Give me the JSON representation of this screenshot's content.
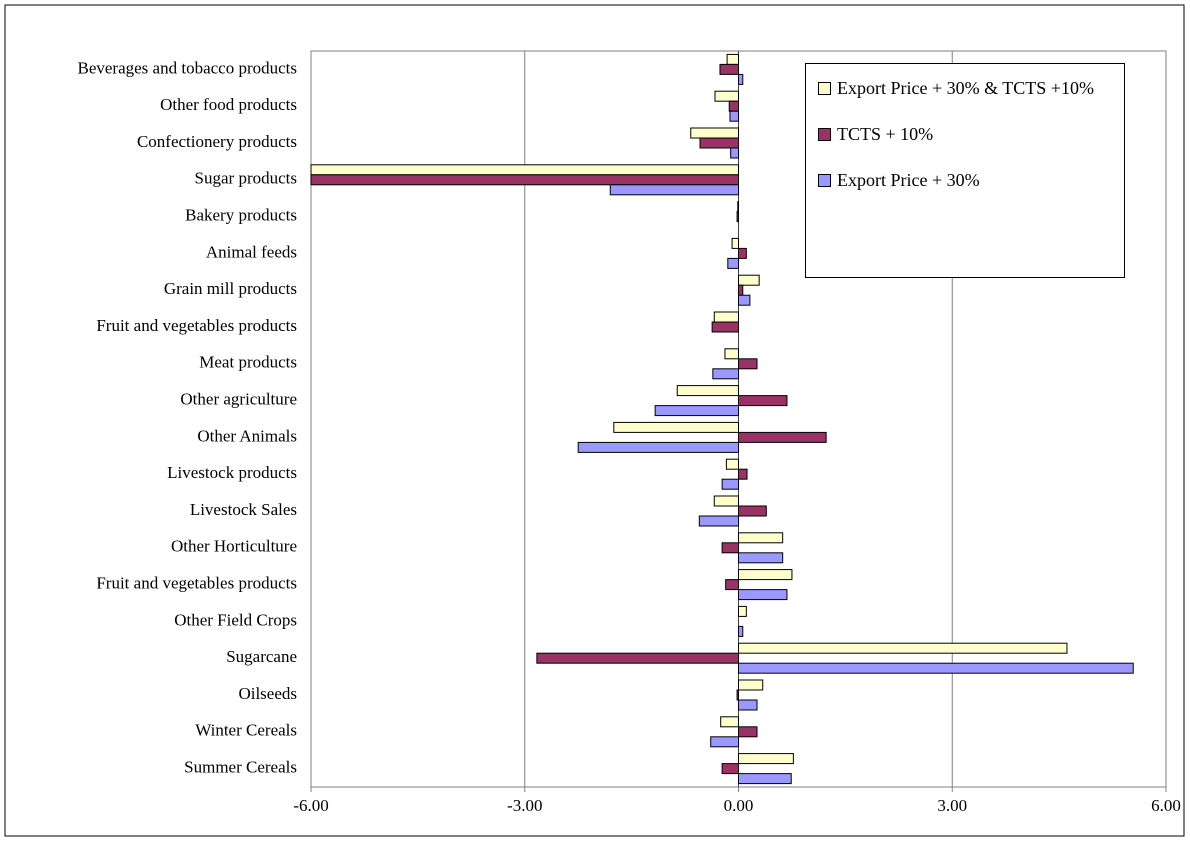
{
  "chart_data": {
    "type": "hbar",
    "categories": [
      "Beverages and tobacco products",
      "Other food products",
      "Confectionery products",
      "Sugar products",
      "Bakery products",
      "Animal feeds",
      "Grain mill products",
      "Fruit and vegetables products",
      "Meat products",
      "Other agriculture",
      "Other Animals",
      "Livestock products",
      "Livestock Sales",
      "Other Horticulture",
      "Fruit and vegetables products",
      "Other Field Crops",
      "Sugarcane",
      "Oilseeds",
      "Winter Cereals",
      "Summer Cereals"
    ],
    "series": [
      {
        "name": "Export Price + 30% & TCTS +10%",
        "color": "#ffffcc",
        "values": [
          -0.16,
          -0.33,
          -0.67,
          -6.0,
          -0.01,
          -0.09,
          0.29,
          -0.34,
          -0.19,
          -0.86,
          -1.75,
          -0.17,
          -0.34,
          0.62,
          0.75,
          0.11,
          4.61,
          0.34,
          -0.25,
          0.77
        ]
      },
      {
        "name": "TCTS + 10%",
        "color": "#993366",
        "values": [
          -0.26,
          -0.13,
          -0.54,
          -6.0,
          -0.02,
          0.11,
          0.06,
          -0.37,
          0.26,
          0.68,
          1.23,
          0.12,
          0.39,
          -0.23,
          -0.18,
          0.0,
          -2.83,
          -0.02,
          0.26,
          -0.23
        ]
      },
      {
        "name": "Export Price + 30%",
        "color": "#9999ff",
        "values": [
          0.06,
          -0.12,
          -0.11,
          -1.8,
          0.0,
          -0.15,
          0.16,
          0.0,
          -0.36,
          -1.17,
          -2.25,
          -0.23,
          -0.55,
          0.62,
          0.68,
          0.06,
          5.54,
          0.26,
          -0.39,
          0.74
        ]
      }
    ],
    "xlim": [
      -6,
      6
    ],
    "xticks": [
      {
        "value": -6,
        "label": "-6.00"
      },
      {
        "value": -3,
        "label": "-3.00"
      },
      {
        "value": 0,
        "label": "0.00"
      },
      {
        "value": 3,
        "label": "3.00"
      },
      {
        "value": 6,
        "label": "6.00"
      }
    ],
    "grid": true
  }
}
